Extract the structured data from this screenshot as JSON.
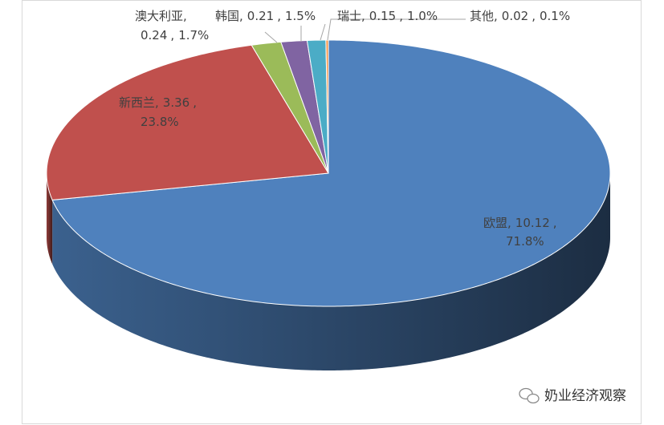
{
  "chart_data": {
    "type": "pie3d",
    "categories": [
      "欧盟",
      "新西兰",
      "澳大利亚",
      "韩国",
      "瑞士",
      "其他"
    ],
    "values": [
      10.12,
      3.36,
      0.24,
      0.21,
      0.15,
      0.02
    ],
    "percent_labels": [
      "71.8%",
      "23.8%",
      "1.7%",
      "1.5%",
      "1.0%",
      "0.1%"
    ],
    "colors": [
      "#4f81bd",
      "#c0504d",
      "#9bbb59",
      "#8064a2",
      "#4bacc6",
      "#f79646"
    ],
    "separator": ","
  },
  "watermark": "奶业经济观察"
}
